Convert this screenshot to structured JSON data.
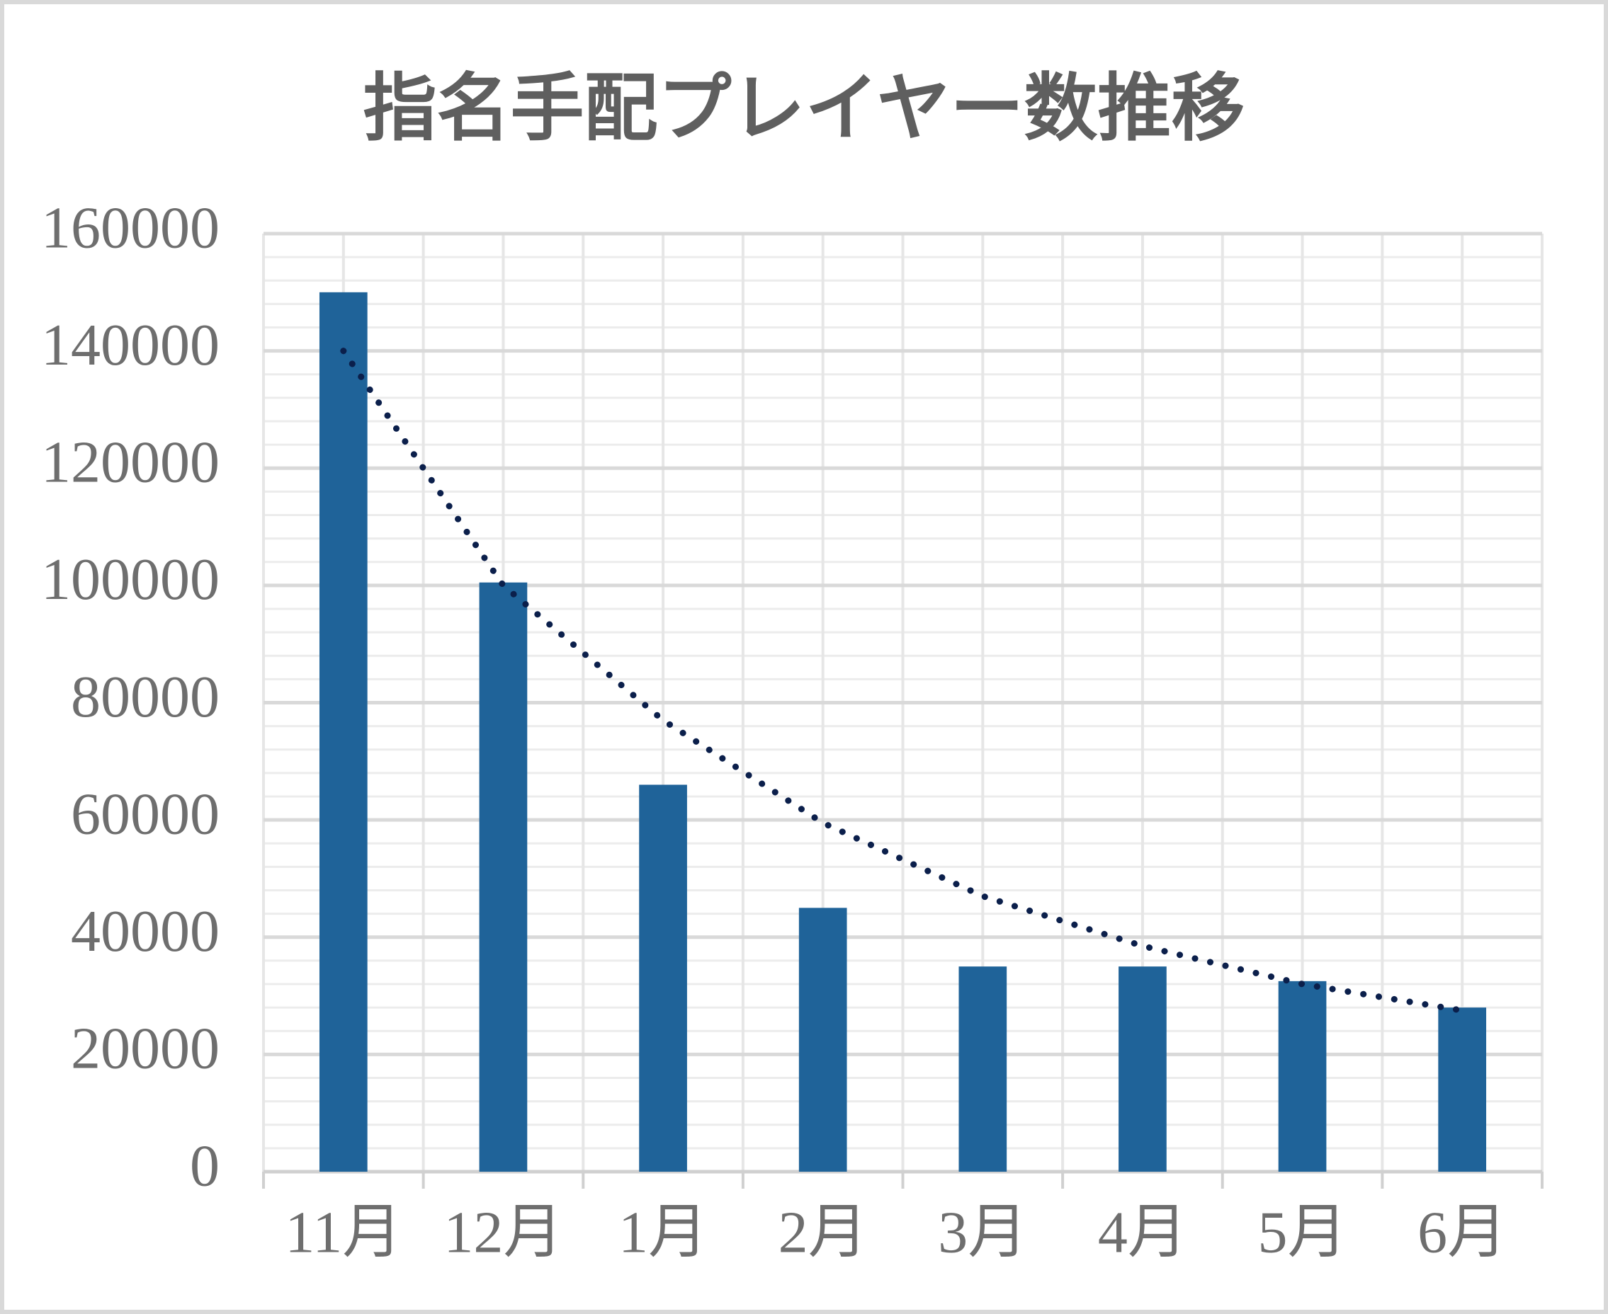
{
  "chart_data": {
    "type": "bar",
    "title": "指名手配プレイヤー数推移",
    "categories": [
      "11月",
      "12月",
      "1月",
      "2月",
      "3月",
      "4月",
      "5月",
      "6月"
    ],
    "values": [
      150000,
      100500,
      66000,
      45000,
      35000,
      35000,
      32500,
      28000
    ],
    "color": "#1f6399",
    "ylim": [
      0,
      160000
    ],
    "yticks": [
      0,
      20000,
      40000,
      60000,
      80000,
      100000,
      120000,
      140000,
      160000
    ],
    "minor_yticks": [
      4000,
      8000,
      12000,
      16000,
      24000,
      28000,
      32000,
      36000,
      44000,
      48000,
      52000,
      56000,
      64000,
      68000,
      72000,
      76000,
      84000,
      88000,
      92000,
      96000,
      104000,
      108000,
      112000,
      116000,
      124000,
      128000,
      132000,
      136000,
      144000,
      148000,
      152000,
      156000
    ],
    "grid": true,
    "trendline": {
      "values": [
        140000,
        100000,
        77000,
        59500,
        47000,
        38500,
        32000,
        27500
      ],
      "color": "#0b1f4b",
      "style": "dotted"
    }
  }
}
